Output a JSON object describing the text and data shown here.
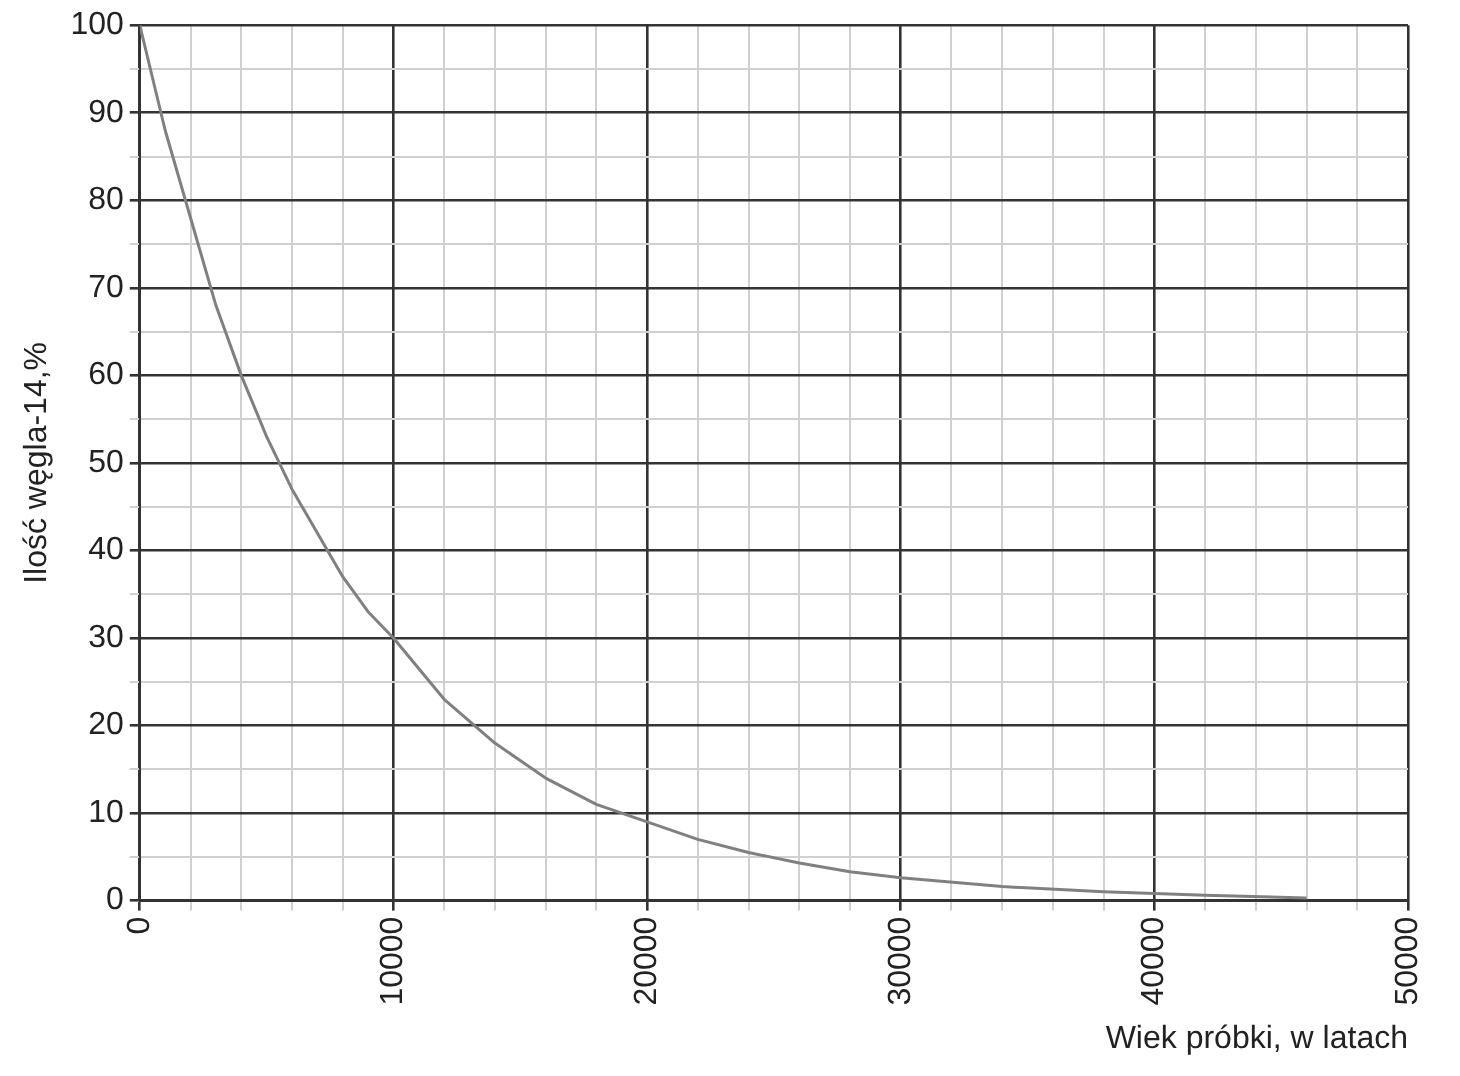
{
  "chart_data": {
    "type": "line",
    "xlabel": "Wiek próbki, w latach",
    "ylabel": "Ilość węgla-14,%",
    "x": [
      0,
      1000,
      2000,
      3000,
      4000,
      5000,
      6000,
      7000,
      8000,
      9000,
      10000,
      12000,
      14000,
      16000,
      18000,
      20000,
      22000,
      24000,
      26000,
      28000,
      30000,
      34000,
      38000,
      42000,
      46000
    ],
    "series": [
      {
        "color": "#808080",
        "values": [
          100,
          88,
          78,
          68,
          60,
          53,
          47,
          42,
          37,
          33,
          30,
          23,
          18,
          14,
          11,
          9,
          7,
          5.5,
          4.3,
          3.3,
          2.6,
          1.6,
          1,
          0.6,
          0.3
        ]
      }
    ],
    "xlim": [
      0,
      50000
    ],
    "xticks": [
      0,
      {
        "value": 2000,
        "label": null
      },
      {
        "value": 4000,
        "label": null
      },
      {
        "value": 6000,
        "label": null
      },
      {
        "value": 8000,
        "label": null
      },
      10000,
      {
        "value": 12000,
        "label": null
      },
      {
        "value": 14000,
        "label": null
      },
      {
        "value": 16000,
        "label": null
      },
      {
        "value": 18000,
        "label": null
      },
      20000,
      {
        "value": 22000,
        "label": null
      },
      {
        "value": 24000,
        "label": null
      },
      {
        "value": 26000,
        "label": null
      },
      {
        "value": 28000,
        "label": null
      },
      30000,
      {
        "value": 32000,
        "label": null
      },
      {
        "value": 34000,
        "label": null
      },
      {
        "value": 36000,
        "label": null
      },
      {
        "value": 38000,
        "label": null
      },
      40000,
      {
        "value": 42000,
        "label": null
      },
      {
        "value": 44000,
        "label": null
      },
      {
        "value": 46000,
        "label": null
      },
      {
        "value": 48000,
        "label": null
      },
      50000
    ],
    "ylim": [
      0,
      100
    ],
    "yticks": [
      0,
      {
        "value": 5,
        "label": null
      },
      10,
      {
        "value": 15,
        "label": null
      },
      20,
      {
        "value": 25,
        "label": null
      },
      30,
      {
        "value": 35,
        "label": null
      },
      40,
      {
        "value": 45,
        "label": null
      },
      50,
      {
        "value": 55,
        "label": null
      },
      60,
      {
        "value": 65,
        "label": null
      },
      70,
      {
        "value": 75,
        "label": null
      },
      80,
      {
        "value": 85,
        "label": null
      },
      90,
      {
        "value": 95,
        "label": null
      },
      100
    ],
    "grid": true,
    "marker": "none",
    "line_style": "solid"
  }
}
